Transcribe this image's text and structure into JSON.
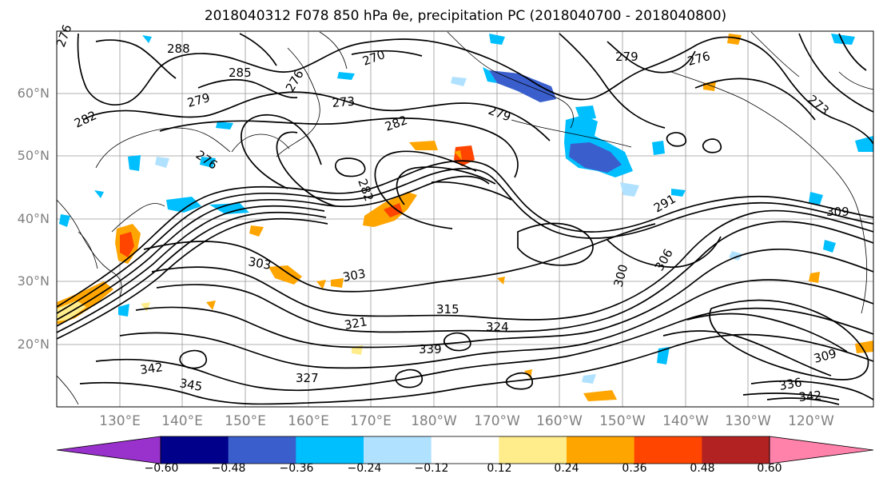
{
  "title": "2018040312 F078 850 hPa θe, precipitation PC (2018040700 - 2018040800)",
  "latitude_labels": [
    "60°N",
    "50°N",
    "40°N",
    "30°N",
    "20°N"
  ],
  "longitude_labels": [
    "130°E",
    "140°E",
    "150°E",
    "160°E",
    "170°E",
    "180°W",
    "170°W",
    "160°W",
    "150°W",
    "140°W",
    "130°W",
    "120°W"
  ],
  "contour_labels": [
    "276",
    "288",
    "285",
    "276",
    "270",
    "279",
    "276",
    "273",
    "282",
    "279",
    "273",
    "282",
    "279",
    "276",
    "282",
    "291",
    "300",
    "306",
    "303",
    "303",
    "309",
    "315",
    "324",
    "321",
    "339",
    "342",
    "345",
    "327",
    "309",
    "336",
    "342"
  ],
  "colorbar": {
    "ticks": [
      "−0.60",
      "−0.48",
      "−0.36",
      "−0.24",
      "−0.12",
      "0.12",
      "0.24",
      "0.36",
      "0.48",
      "0.60"
    ],
    "colors": [
      "#9932cc",
      "#00008b",
      "#3a5fcd",
      "#00bfff",
      "#b0e2ff",
      "#ffffff",
      "#ffec8b",
      "#ffa500",
      "#ff4500",
      "#b22222",
      "#ff82ab"
    ]
  }
}
